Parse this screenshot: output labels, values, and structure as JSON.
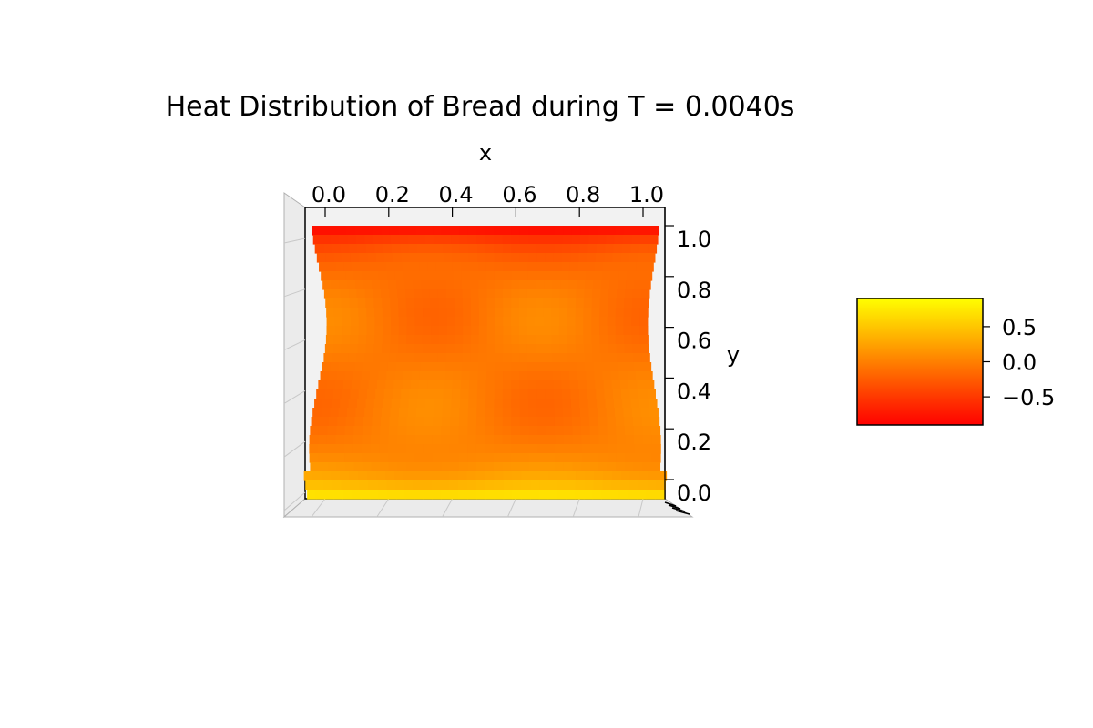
{
  "chart_data": {
    "type": "heatmap",
    "title": "Heat Distribution of Bread during T = 0.0040s",
    "xlabel": "x",
    "ylabel": "y",
    "xlim": [
      0.0,
      1.0
    ],
    "ylim": [
      0.0,
      1.0
    ],
    "x_ticks": [
      "0.0",
      "0.2",
      "0.4",
      "0.6",
      "0.8",
      "1.0"
    ],
    "y_ticks": [
      "0.0",
      "0.2",
      "0.4",
      "0.6",
      "0.8",
      "1.0"
    ],
    "colormap": "autumn",
    "colormap_colors": [
      "#ff0000",
      "#ffff00"
    ],
    "colorbar": {
      "range": [
        -0.9,
        0.9
      ],
      "ticks": [
        "0.5",
        "0.0",
        "−0.5"
      ],
      "tick_values": [
        0.5,
        0.0,
        -0.5
      ]
    },
    "field": {
      "description_values": "approximate surface value at sampled x,y",
      "x": [
        0.0,
        0.1,
        0.2,
        0.3,
        0.4,
        0.5,
        0.6,
        0.7,
        0.8,
        0.9,
        1.0
      ],
      "y": [
        0.0,
        0.1,
        0.2,
        0.3,
        0.4,
        0.5,
        0.6,
        0.7,
        0.8,
        0.9,
        1.0
      ],
      "boundary_bottom": 0.9,
      "boundary_top": -0.9,
      "interior_mean": -0.05,
      "interior_variation": 0.15
    }
  }
}
